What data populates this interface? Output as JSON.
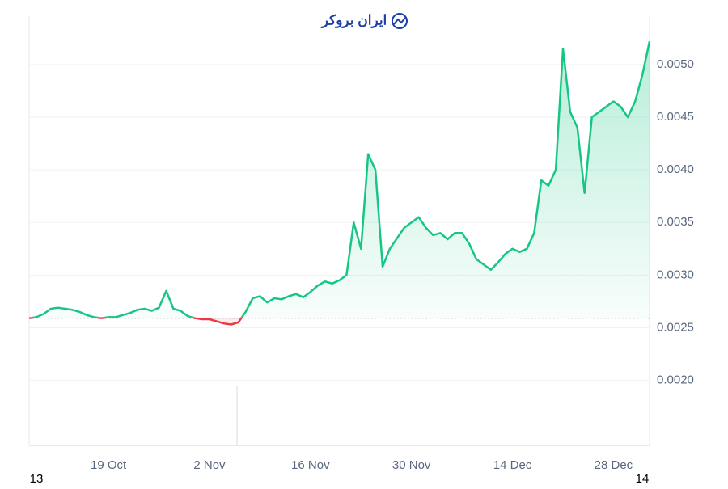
{
  "chart_data": {
    "type": "line",
    "watermark": "ایران بروکر",
    "x_start_label": "13",
    "x_end_label": "14",
    "categories": [
      null,
      null,
      null,
      null,
      null,
      null,
      null,
      null,
      null,
      null,
      null,
      "19 Oct",
      null,
      null,
      null,
      null,
      null,
      null,
      null,
      null,
      null,
      null,
      null,
      null,
      null,
      "2 Nov",
      null,
      null,
      null,
      null,
      null,
      null,
      null,
      null,
      null,
      null,
      null,
      null,
      null,
      "16 Nov",
      null,
      null,
      null,
      null,
      null,
      null,
      null,
      null,
      null,
      null,
      null,
      null,
      null,
      "30 Nov",
      null,
      null,
      null,
      null,
      null,
      null,
      null,
      null,
      null,
      null,
      null,
      null,
      null,
      "14 Dec",
      null,
      null,
      null,
      null,
      null,
      null,
      null,
      null,
      null,
      null,
      null,
      null,
      null,
      "28 Dec",
      null,
      null,
      null,
      null,
      null
    ],
    "series": [
      {
        "color": "#16c784",
        "below_color": "#ea3943",
        "values": [
          0.00259,
          0.0026,
          0.00263,
          0.00268,
          0.00269,
          0.00268,
          0.00267,
          0.00265,
          0.00262,
          0.0026,
          0.00259,
          0.0026,
          0.0026,
          0.00262,
          0.00264,
          0.00267,
          0.00268,
          0.00266,
          0.00269,
          0.00285,
          0.00268,
          0.00266,
          0.00261,
          0.00259,
          0.00258,
          0.00258,
          0.00256,
          0.00254,
          0.00253,
          0.00255,
          0.00265,
          0.00278,
          0.0028,
          0.00274,
          0.00278,
          0.00277,
          0.0028,
          0.00282,
          0.00279,
          0.00284,
          0.0029,
          0.00294,
          0.00292,
          0.00295,
          0.003,
          0.0035,
          0.00325,
          0.00415,
          0.004,
          0.00308,
          0.00325,
          0.00335,
          0.00345,
          0.0035,
          0.00355,
          0.00345,
          0.00338,
          0.0034,
          0.00334,
          0.0034,
          0.0034,
          0.0033,
          0.00315,
          0.0031,
          0.00305,
          0.00312,
          0.0032,
          0.00325,
          0.00322,
          0.00325,
          0.0034,
          0.0039,
          0.00385,
          0.004,
          0.00515,
          0.00455,
          0.0044,
          0.00378,
          0.0045,
          0.00455,
          0.0046,
          0.00465,
          0.0046,
          0.0045,
          0.00465,
          0.0049,
          0.00522
        ]
      }
    ],
    "baseline": 0.00259,
    "ylim": [
      0.00139,
      0.00546
    ],
    "yticks": [
      {
        "value": 0.002,
        "label": "0.0020"
      },
      {
        "value": 0.0025,
        "label": "0.0025"
      },
      {
        "value": 0.003,
        "label": "0.0030"
      },
      {
        "value": 0.0035,
        "label": "0.0035"
      },
      {
        "value": 0.004,
        "label": "0.0040"
      },
      {
        "value": 0.0045,
        "label": "0.0045"
      },
      {
        "value": 0.005,
        "label": "0.0050"
      }
    ],
    "grid": true
  }
}
